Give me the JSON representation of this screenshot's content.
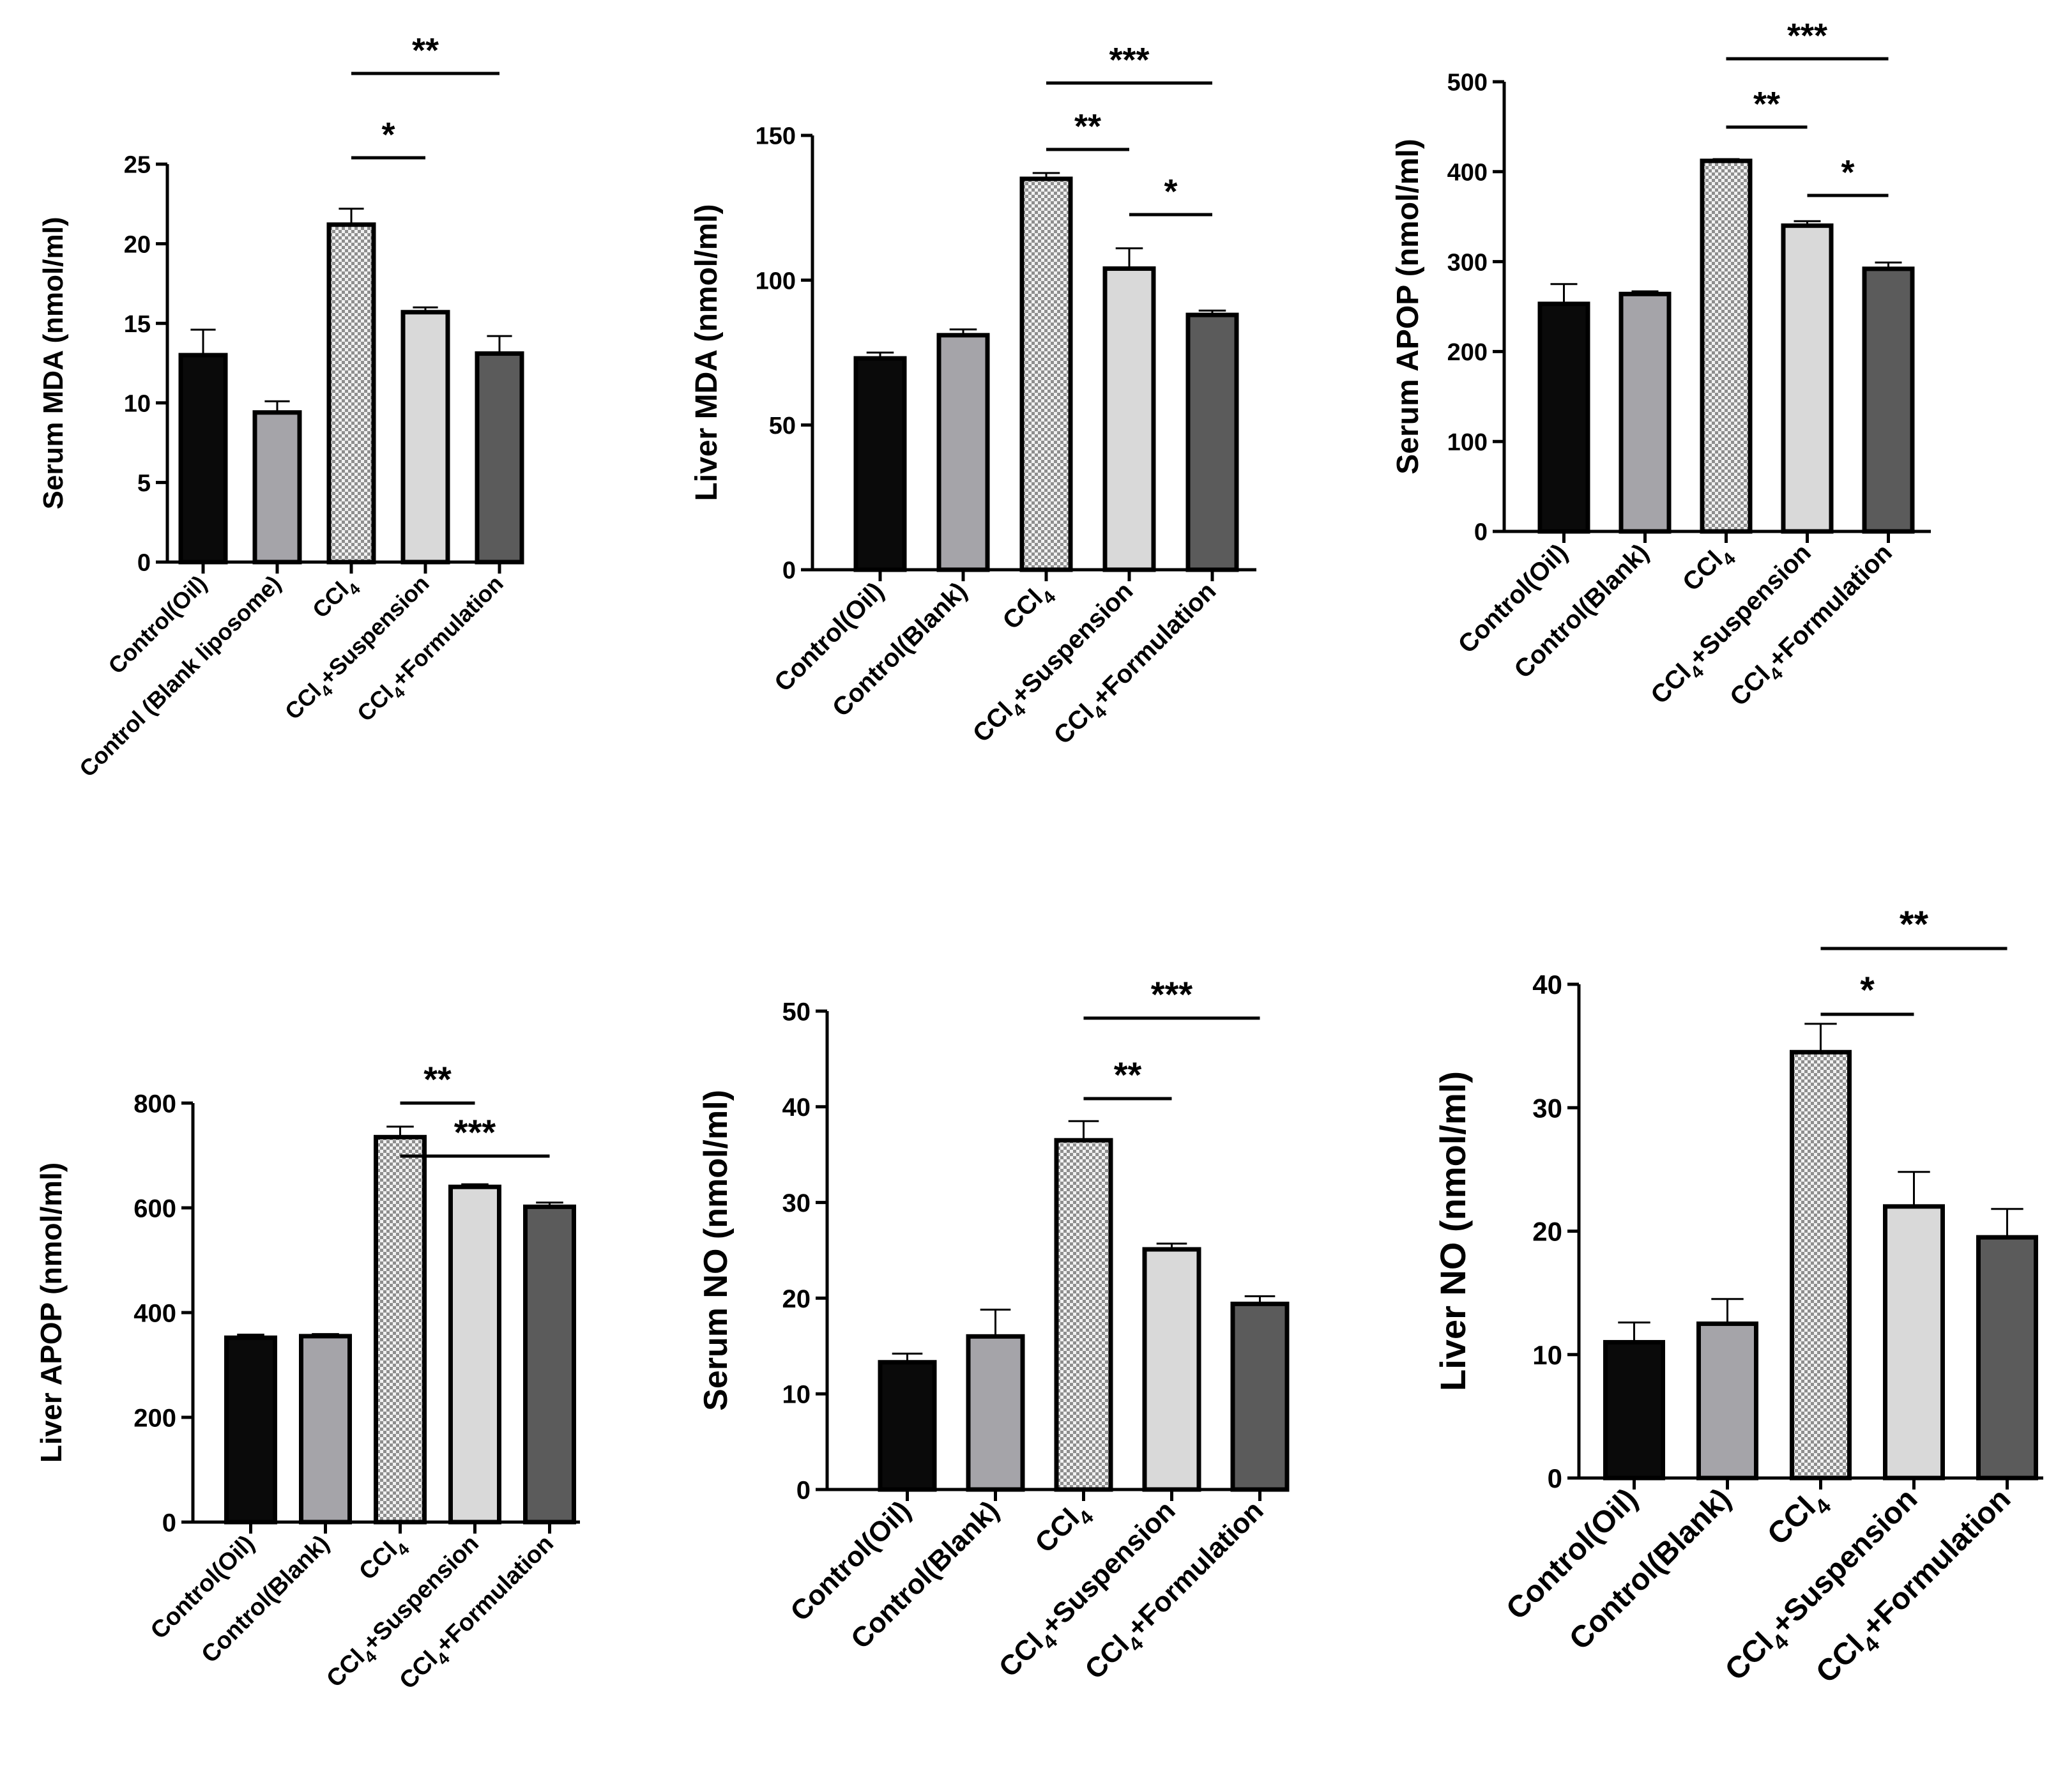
{
  "colors": {
    "control_oil": "#0a0a0a",
    "control_blank": "#a5a4a9",
    "ccl4_pattern_light": "#f1f1f1",
    "ccl4_pattern_dark": "#8e8e8e",
    "suspension": "#d9d9d9",
    "formulation": "#5b5b5b",
    "axis": "#000000"
  },
  "chart_data": [
    {
      "type": "bar",
      "ylabel": "Serum MDA (nmol/ml)",
      "ylim": [
        0,
        25
      ],
      "yticks": [
        0,
        5,
        10,
        15,
        20,
        25
      ],
      "categories": [
        {
          "pre": "Control(Oil)"
        },
        {
          "pre": "Control (Blank liposome)"
        },
        {
          "pre": "CCl",
          "sub": "4",
          "post": ""
        },
        {
          "pre": "CCl",
          "sub": "4",
          "post": "+Suspension"
        },
        {
          "pre": "CCl",
          "sub": "4",
          "post": "+Formulation"
        }
      ],
      "values": [
        13.0,
        9.4,
        21.2,
        15.7,
        13.1
      ],
      "errors": [
        1.6,
        0.7,
        1.0,
        0.3,
        1.1
      ],
      "significance": [
        {
          "from": 2,
          "to": 3,
          "label": "*"
        },
        {
          "from": 2,
          "to": 4,
          "label": "**"
        }
      ]
    },
    {
      "type": "bar",
      "ylabel": "Liver MDA (nmol/ml)",
      "ylim": [
        0,
        150
      ],
      "yticks": [
        0,
        50,
        100,
        150
      ],
      "categories": [
        {
          "pre": "Control(Oil)"
        },
        {
          "pre": "Control(Blank)"
        },
        {
          "pre": "CCl",
          "sub": "4",
          "post": ""
        },
        {
          "pre": "CCl",
          "sub": "4",
          "post": "+Suspension"
        },
        {
          "pre": "CCl",
          "sub": "4",
          "post": "+Formulation"
        }
      ],
      "values": [
        73,
        81,
        135,
        104,
        88
      ],
      "errors": [
        2,
        2,
        2,
        7,
        1.5
      ],
      "significance": [
        {
          "from": 2,
          "to": 3,
          "label": "**"
        },
        {
          "from": 3,
          "to": 4,
          "label": "*"
        },
        {
          "from": 2,
          "to": 4,
          "label": "***"
        }
      ]
    },
    {
      "type": "bar",
      "ylabel": "Serum APOP (nmol/ml)",
      "ylim": [
        0,
        500
      ],
      "yticks": [
        0,
        100,
        200,
        300,
        400,
        500
      ],
      "categories": [
        {
          "pre": "Control(Oil)"
        },
        {
          "pre": "Control(Blank)"
        },
        {
          "pre": "CCl",
          "sub": "4",
          "post": ""
        },
        {
          "pre": "CCl",
          "sub": "4",
          "post": "+Suspension"
        },
        {
          "pre": "CCl",
          "sub": "4",
          "post": "+Formulation"
        }
      ],
      "values": [
        253,
        264,
        412,
        340,
        292
      ],
      "errors": [
        22,
        3,
        2,
        5,
        7
      ],
      "significance": [
        {
          "from": 2,
          "to": 3,
          "label": "**"
        },
        {
          "from": 3,
          "to": 4,
          "label": "*"
        },
        {
          "from": 2,
          "to": 4,
          "label": "***"
        }
      ]
    },
    {
      "type": "bar",
      "ylabel": "Liver APOP (nmol/ml)",
      "ylim": [
        0,
        800
      ],
      "yticks": [
        0,
        200,
        400,
        600,
        800
      ],
      "categories": [
        {
          "pre": "Control(Oil)"
        },
        {
          "pre": "Control(Blank)"
        },
        {
          "pre": "CCl",
          "sub": "4",
          "post": ""
        },
        {
          "pre": "CCl",
          "sub": "4",
          "post": "+Suspension"
        },
        {
          "pre": "CCl",
          "sub": "4",
          "post": "+Formulation"
        }
      ],
      "values": [
        352,
        355,
        735,
        640,
        602
      ],
      "errors": [
        6,
        4,
        20,
        5,
        8
      ],
      "significance": [
        {
          "from": 2,
          "to": 3,
          "label": "**"
        },
        {
          "from": 2,
          "to": 4,
          "label": "***"
        }
      ]
    },
    {
      "type": "bar",
      "ylabel": "Serum NO (nmol/ml)",
      "ylim": [
        0,
        50
      ],
      "yticks": [
        0,
        10,
        20,
        30,
        40,
        50
      ],
      "categories": [
        {
          "pre": "Control(Oil)"
        },
        {
          "pre": "Control(Blank)"
        },
        {
          "pre": "CCl",
          "sub": "4",
          "post": ""
        },
        {
          "pre": "CCl",
          "sub": "4",
          "post": "+Suspension"
        },
        {
          "pre": "CCl",
          "sub": "4",
          "post": "+Formulation"
        }
      ],
      "values": [
        13.3,
        16.0,
        36.5,
        25.1,
        19.4
      ],
      "errors": [
        0.9,
        2.8,
        2.0,
        0.6,
        0.8
      ],
      "significance": [
        {
          "from": 2,
          "to": 3,
          "label": "**"
        },
        {
          "from": 2,
          "to": 4,
          "label": "***"
        }
      ]
    },
    {
      "type": "bar",
      "ylabel": "Liver NO (nmol/ml)",
      "ylim": [
        0,
        40
      ],
      "yticks": [
        0,
        10,
        20,
        30,
        40
      ],
      "categories": [
        {
          "pre": "Control(Oil)"
        },
        {
          "pre": "Control(Blank)"
        },
        {
          "pre": "CCl",
          "sub": "4",
          "post": ""
        },
        {
          "pre": "CCl",
          "sub": "4",
          "post": "+Suspension"
        },
        {
          "pre": "CCl",
          "sub": "4",
          "post": "+Formulation"
        }
      ],
      "values": [
        11.0,
        12.5,
        34.5,
        22.0,
        19.5
      ],
      "errors": [
        1.6,
        2.0,
        2.3,
        2.8,
        2.3
      ],
      "significance": [
        {
          "from": 2,
          "to": 3,
          "label": "*"
        },
        {
          "from": 2,
          "to": 4,
          "label": "**"
        }
      ]
    }
  ]
}
